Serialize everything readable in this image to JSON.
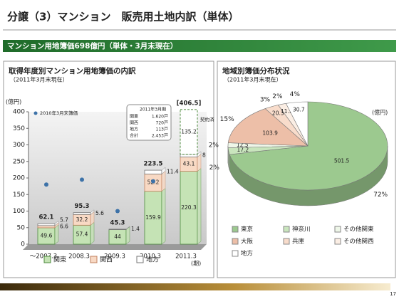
{
  "header": {
    "title": "分譲（3）マンション　販売用土地内訳（単体）"
  },
  "banner": "マンション用地簿価698億円（単体・3月末現在）",
  "page_number": "17",
  "chart_data": [
    {
      "type": "bar",
      "title": "取得年度別マンション用地簿価の内訳",
      "subtitle": "（2011年3月末現在）",
      "y_label": "(億円)",
      "x_label": "(期)",
      "categories": [
        "～2007.3",
        "2008.3",
        "2009.3",
        "2010.3",
        "2011.3"
      ],
      "ylim": [
        0,
        400
      ],
      "yticks": [
        0,
        50,
        100,
        150,
        200,
        250,
        300,
        350,
        400
      ],
      "grid": false,
      "series": [
        {
          "name": "関東",
          "color": "#c5e3b5",
          "values": [
            49.6,
            57.4,
            44.0,
            159.9,
            220.3
          ]
        },
        {
          "name": "関西",
          "color": "#f8d9c4",
          "values": [
            6.6,
            32.2,
            null,
            52.2,
            43.1
          ]
        },
        {
          "name": "地方",
          "color": "#ffffff",
          "values": [
            5.7,
            5.6,
            1.4,
            11.4,
            8.0
          ]
        }
      ],
      "contracted": {
        "name": "契約済",
        "values": [
          null,
          null,
          null,
          null,
          135.2
        ]
      },
      "totals": {
        "values": [
          62.1,
          95.3,
          45.3,
          223.5,
          406.5
        ],
        "value_labels": [
          "62.1",
          "95.3",
          "45.3",
          "223.5",
          "[406.5]"
        ]
      },
      "scatter": {
        "name": "2010年3月末簿価",
        "color": "#3d72a8",
        "values": [
          180,
          195,
          100,
          190,
          null
        ]
      },
      "note": {
        "title": "2011年3月期",
        "rows": [
          [
            "関東",
            "1,620戸"
          ],
          [
            "関西",
            "720戸"
          ],
          [
            "地方",
            "113戸"
          ],
          [
            "合計",
            "2,453戸"
          ]
        ]
      }
    },
    {
      "type": "pie",
      "title": "地域別簿価分布状況",
      "subtitle": "（2011年3月末現在）",
      "unit": "(億円)",
      "categories": [
        "東京",
        "神奈川",
        "その他関東",
        "大阪",
        "兵庫",
        "その他関西",
        "地方"
      ],
      "values": [
        501.5,
        17.2,
        12.5,
        103.9,
        20.3,
        11.5,
        30.7
      ],
      "percent_labels": [
        "72%",
        "2%",
        "2%",
        "15%",
        "3%",
        "2%",
        "4%"
      ],
      "colors": [
        "#9cc98f",
        "#c9e5bd",
        "#eef6e8",
        "#edbfa8",
        "#f8dccb",
        "#fbeee4",
        "#ffffff"
      ]
    }
  ]
}
